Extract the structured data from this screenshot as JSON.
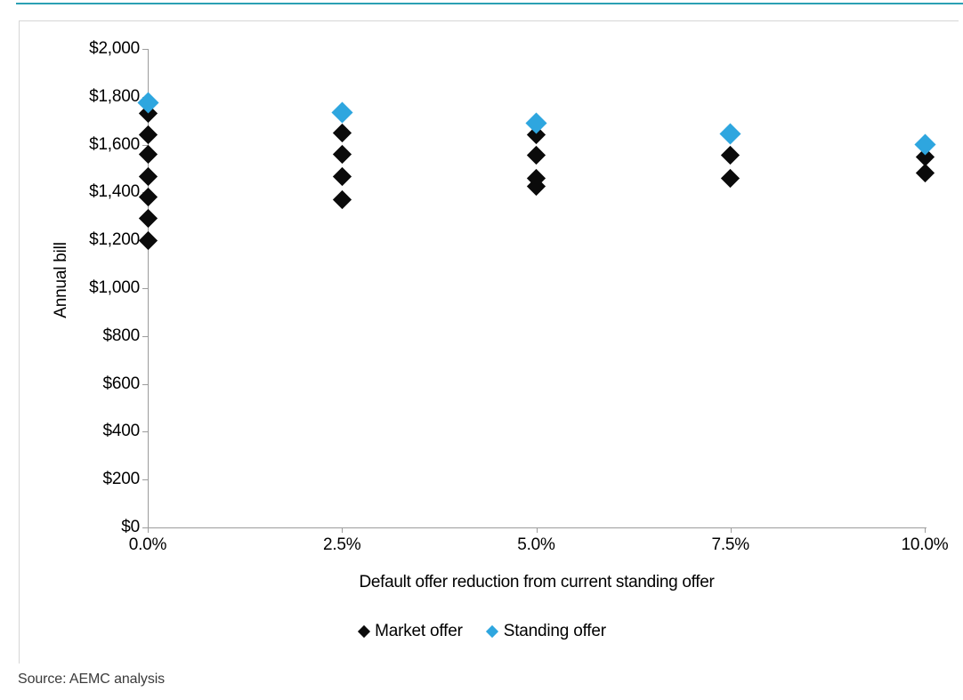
{
  "page": {
    "source_note": "Source: AEMC analysis"
  },
  "colors": {
    "accent_line": "#2BA0B4",
    "frame_border": "#D6D6D6",
    "axis": "#9C9C9C",
    "market": "#0B0B0B",
    "standing": "#2EA6DF",
    "source_text": "#3B3B3B"
  },
  "chart_data": {
    "type": "scatter",
    "title": "",
    "xlabel": "Default offer reduction from current standing offer",
    "ylabel": "Annual bill",
    "x_tick_labels": [
      "0.0%",
      "2.5%",
      "5.0%",
      "7.5%",
      "10.0%"
    ],
    "x_tick_values": [
      0,
      2.5,
      5,
      7.5,
      10
    ],
    "y_tick_labels": [
      "$0",
      "$200",
      "$400",
      "$600",
      "$800",
      "$1,000",
      "$1,200",
      "$1,400",
      "$1,600",
      "$1,800",
      "$2,000"
    ],
    "y_tick_values": [
      0,
      200,
      400,
      600,
      800,
      1000,
      1200,
      1400,
      1600,
      1800,
      2000
    ],
    "xlim": [
      0,
      10
    ],
    "ylim": [
      0,
      2000
    ],
    "grid": false,
    "legend_position": "bottom",
    "series": [
      {
        "name": "Market offer",
        "color": "#0B0B0B",
        "points": [
          [
            0,
            1730
          ],
          [
            0,
            1640
          ],
          [
            0,
            1560
          ],
          [
            0,
            1465
          ],
          [
            0,
            1380
          ],
          [
            0,
            1290
          ],
          [
            0,
            1200
          ],
          [
            2.5,
            1650
          ],
          [
            2.5,
            1560
          ],
          [
            2.5,
            1465
          ],
          [
            2.5,
            1370
          ],
          [
            5,
            1640
          ],
          [
            5,
            1555
          ],
          [
            5,
            1460
          ],
          [
            5,
            1425
          ],
          [
            7.5,
            1555
          ],
          [
            7.5,
            1460
          ],
          [
            10,
            1550
          ],
          [
            10,
            1480
          ]
        ]
      },
      {
        "name": "Standing offer",
        "color": "#2EA6DF",
        "points": [
          [
            0,
            1775
          ],
          [
            2.5,
            1733
          ],
          [
            5,
            1688
          ],
          [
            7.5,
            1644
          ],
          [
            10,
            1600
          ]
        ]
      }
    ]
  }
}
